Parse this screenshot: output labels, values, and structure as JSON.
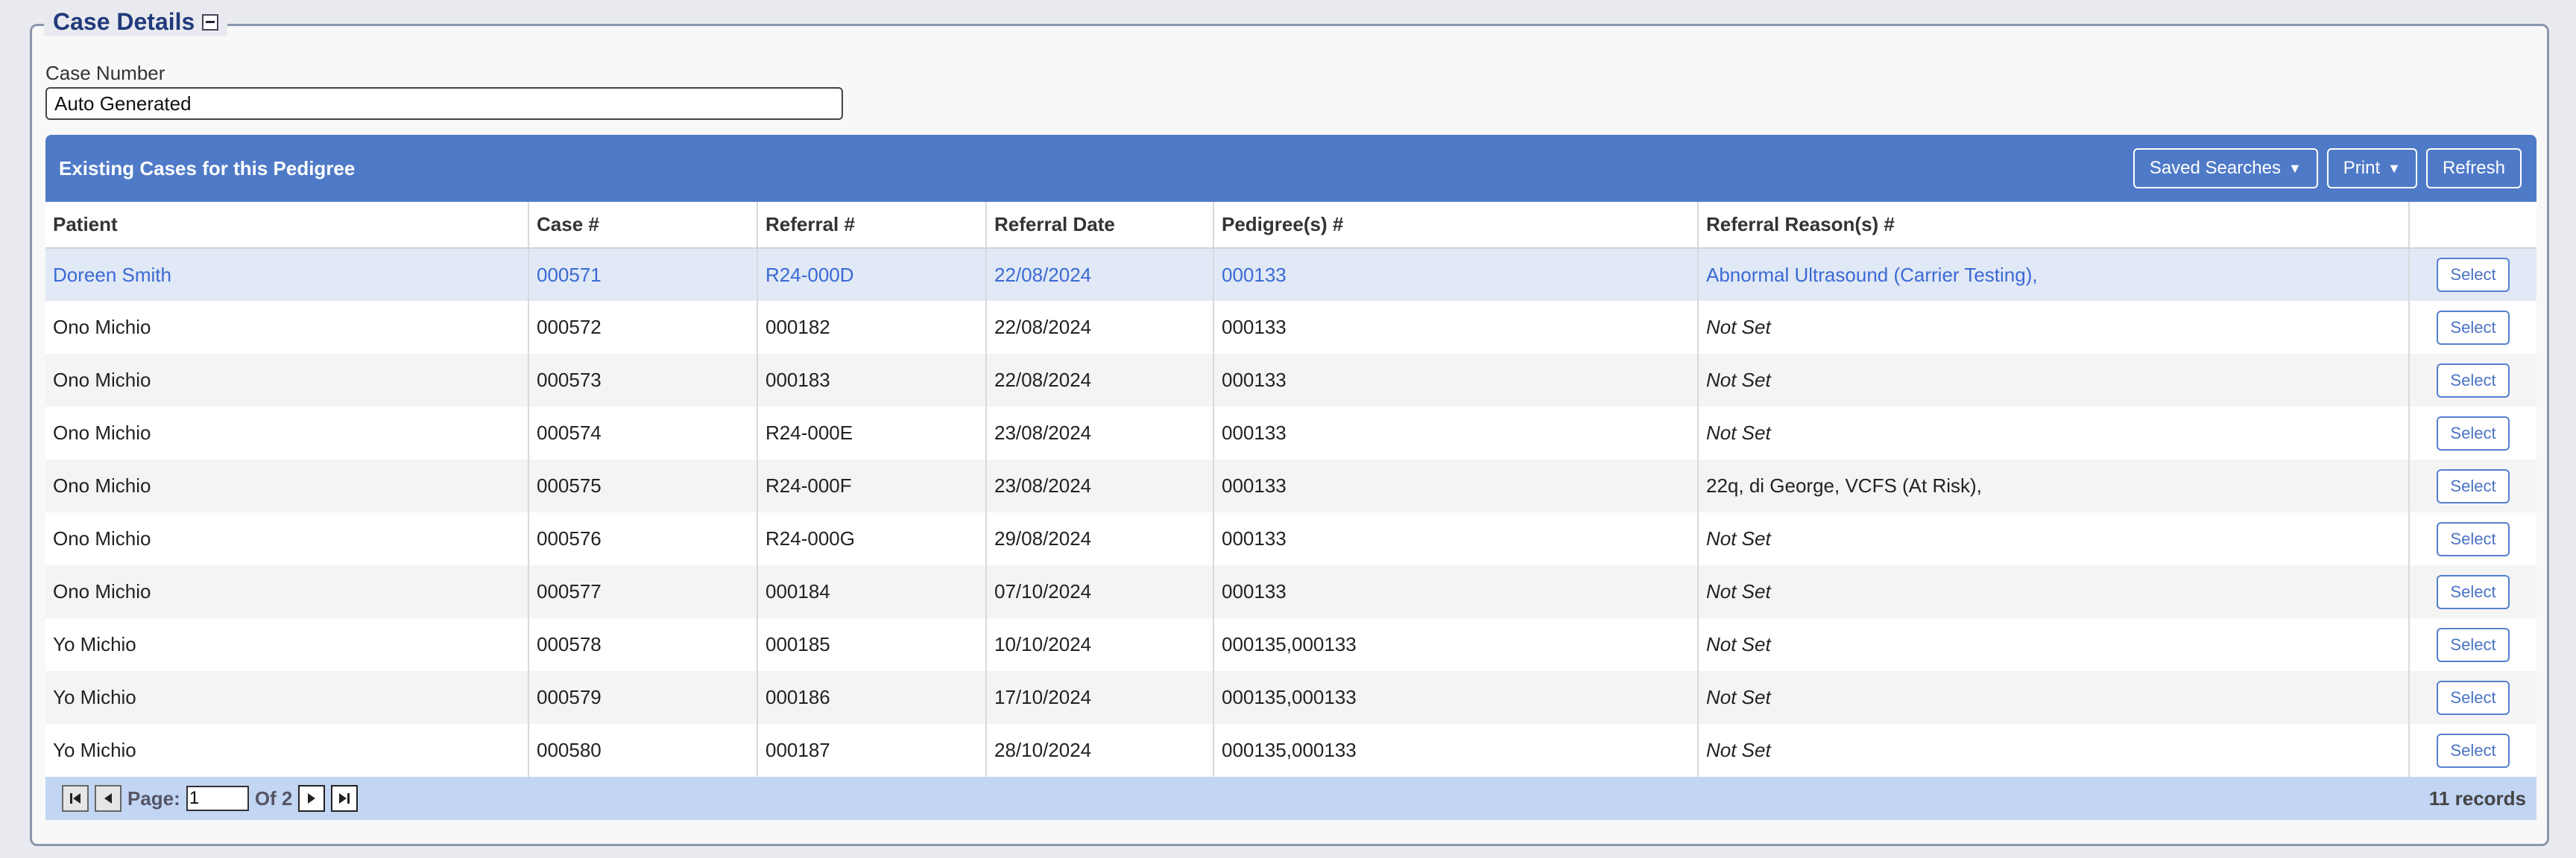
{
  "section": {
    "title": "Case Details"
  },
  "case_number": {
    "label": "Case Number",
    "value": "Auto Generated"
  },
  "grid": {
    "title": "Existing Cases for this Pedigree",
    "tools": {
      "saved_searches": "Saved Searches",
      "print": "Print",
      "refresh": "Refresh"
    },
    "columns": [
      "Patient",
      "Case #",
      "Referral #",
      "Referral Date",
      "Pedigree(s) #",
      "Referral Reason(s) #",
      ""
    ],
    "select_label": "Select",
    "rows": [
      {
        "patient": "Doreen Smith",
        "case": "000571",
        "referral": "R24-000D",
        "date": "22/08/2024",
        "pedigree": "000133",
        "reason": "Abnormal Ultrasound (Carrier Testing),"
      },
      {
        "patient": "Ono Michio",
        "case": "000572",
        "referral": "000182",
        "date": "22/08/2024",
        "pedigree": "000133",
        "reason": "Not Set"
      },
      {
        "patient": "Ono Michio",
        "case": "000573",
        "referral": "000183",
        "date": "22/08/2024",
        "pedigree": "000133",
        "reason": "Not Set"
      },
      {
        "patient": "Ono Michio",
        "case": "000574",
        "referral": "R24-000E",
        "date": "23/08/2024",
        "pedigree": "000133",
        "reason": "Not Set"
      },
      {
        "patient": "Ono Michio",
        "case": "000575",
        "referral": "R24-000F",
        "date": "23/08/2024",
        "pedigree": "000133",
        "reason": "22q, di George, VCFS (At Risk),"
      },
      {
        "patient": "Ono Michio",
        "case": "000576",
        "referral": "R24-000G",
        "date": "29/08/2024",
        "pedigree": "000133",
        "reason": "Not Set"
      },
      {
        "patient": "Ono Michio",
        "case": "000577",
        "referral": "000184",
        "date": "07/10/2024",
        "pedigree": "000133",
        "reason": "Not Set"
      },
      {
        "patient": "Yo Michio",
        "case": "000578",
        "referral": "000185",
        "date": "10/10/2024",
        "pedigree": "000135,000133",
        "reason": "Not Set"
      },
      {
        "patient": "Yo Michio",
        "case": "000579",
        "referral": "000186",
        "date": "17/10/2024",
        "pedigree": "000135,000133",
        "reason": "Not Set"
      },
      {
        "patient": "Yo Michio",
        "case": "000580",
        "referral": "000187",
        "date": "28/10/2024",
        "pedigree": "000135,000133",
        "reason": "Not Set"
      }
    ],
    "footer": {
      "page_label": "Page:",
      "page_value": "1",
      "of_label": "Of 2",
      "records": "11 records"
    }
  },
  "colors": {
    "header_blue": "#4f7ac7",
    "link_blue": "#3a6ad4",
    "footer_blue": "#c2d5f3"
  }
}
